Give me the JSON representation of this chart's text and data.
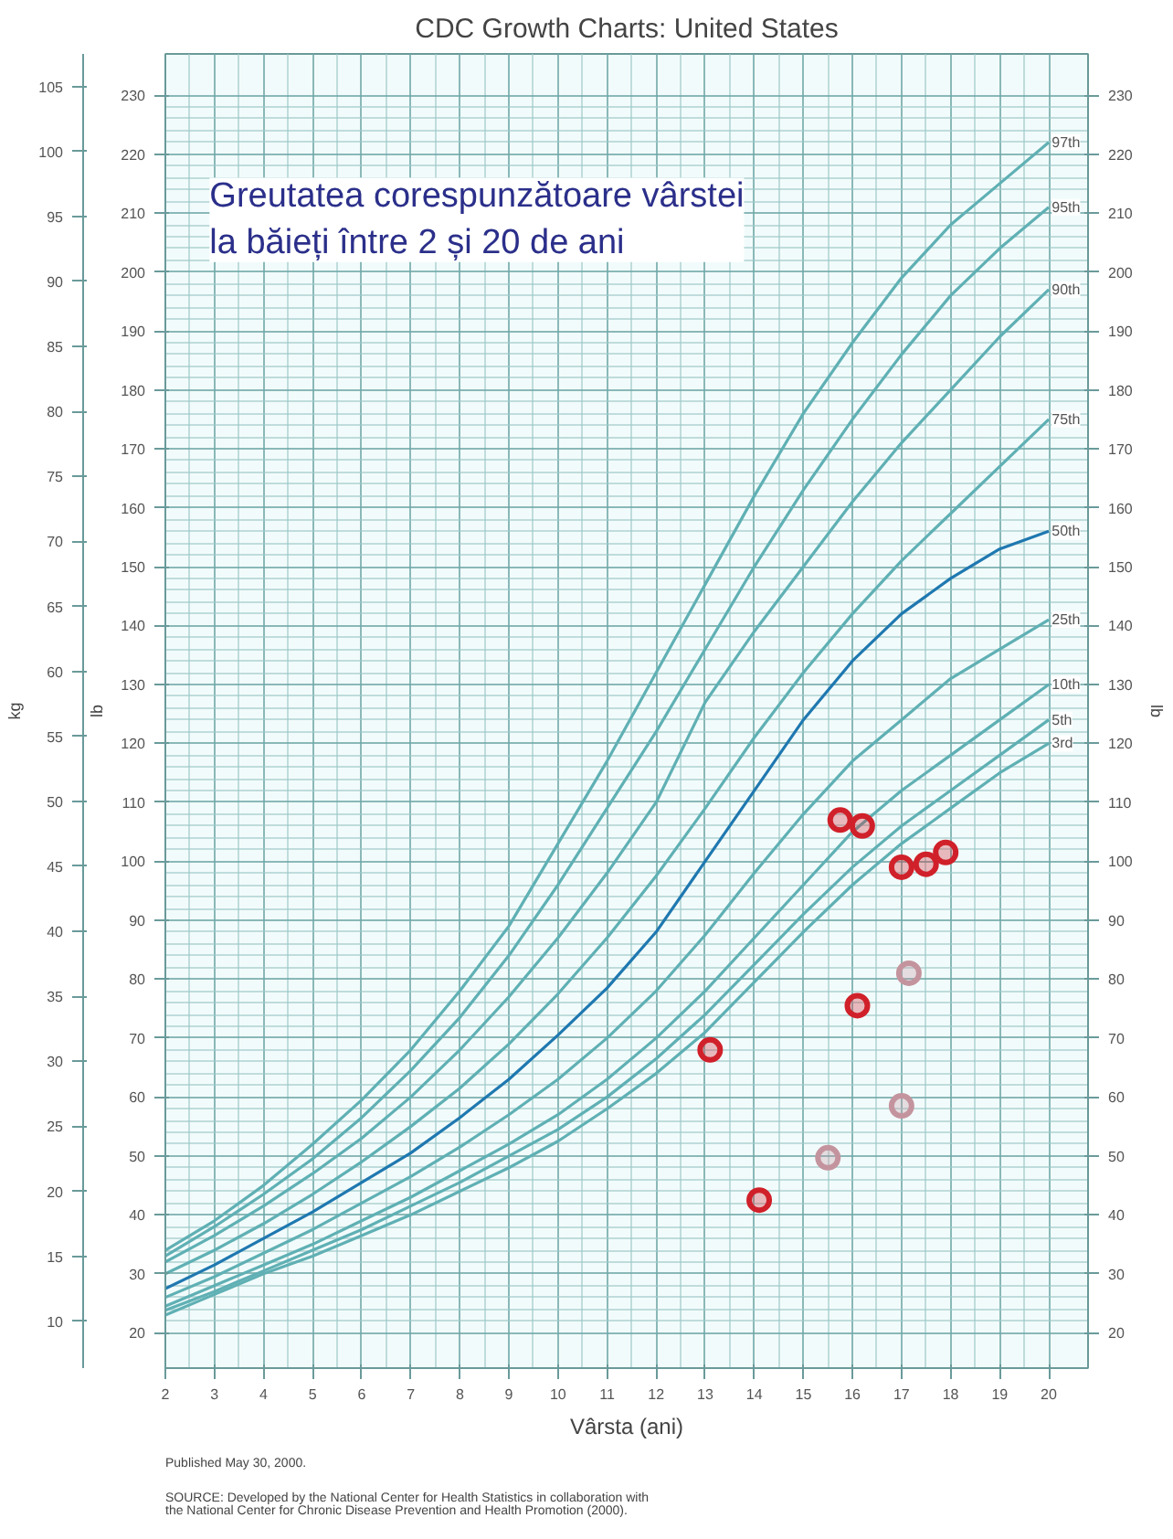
{
  "chart_data": {
    "type": "line",
    "title": "CDC Growth Charts: United States",
    "subtitle": "Greutatea corespunzătoare vârstei\nla băieți  între 2 și 20 de ani",
    "xlabel": "Vârsta (ani)",
    "ylabel": "lb",
    "y2label": "lb",
    "y3label": "kg",
    "x": [
      2,
      3,
      4,
      5,
      6,
      7,
      8,
      9,
      10,
      11,
      12,
      13,
      14,
      15,
      16,
      17,
      18,
      19,
      20
    ],
    "series": [
      {
        "name": "97th",
        "color": "#5fb0b4",
        "values": [
          34,
          39,
          45,
          52,
          59.5,
          68,
          78,
          89,
          103,
          117,
          132,
          147,
          162,
          176,
          188,
          199,
          208,
          215,
          222
        ]
      },
      {
        "name": "95th",
        "color": "#5fb0b4",
        "values": [
          33,
          38,
          43.5,
          49.5,
          56.5,
          64.5,
          73.5,
          84,
          96,
          109,
          122,
          136,
          150,
          163,
          175,
          186,
          196,
          204,
          211
        ]
      },
      {
        "name": "90th",
        "color": "#5fb0b4",
        "values": [
          32,
          36.5,
          41.5,
          47,
          53,
          60,
          68,
          77,
          87,
          98,
          110,
          127,
          139,
          150,
          161,
          171,
          180,
          189,
          197
        ]
      },
      {
        "name": "75th",
        "color": "#5fb0b4",
        "values": [
          30,
          34,
          38.5,
          43.5,
          49,
          55,
          61.5,
          69,
          77.5,
          87,
          97.5,
          109,
          121,
          132,
          142,
          151,
          159,
          167,
          175
        ]
      },
      {
        "name": "50th",
        "color": "#1f78b0",
        "values": [
          27.5,
          31.5,
          36,
          40.5,
          45.5,
          50.5,
          56.5,
          63,
          70.5,
          78.5,
          88,
          100,
          112,
          124,
          134,
          142,
          148,
          153,
          156
        ]
      },
      {
        "name": "25th",
        "color": "#5fb0b4",
        "values": [
          26,
          29.5,
          33.5,
          37.5,
          42,
          46.5,
          51.5,
          57,
          63,
          70,
          78,
          87.5,
          98,
          108,
          117,
          124,
          131,
          136,
          141
        ]
      },
      {
        "name": "10th",
        "color": "#5fb0b4",
        "values": [
          24.5,
          28,
          31.5,
          35,
          39,
          43,
          47.5,
          52,
          57,
          63,
          70,
          78,
          87,
          96,
          105,
          112,
          118,
          124,
          130
        ]
      },
      {
        "name": "5th",
        "color": "#5fb0b4",
        "values": [
          23.8,
          27,
          30.5,
          34,
          37.5,
          41.5,
          45.5,
          50,
          54.5,
          60,
          66.5,
          74,
          82.5,
          91,
          99,
          106,
          112,
          118,
          124
        ]
      },
      {
        "name": "3rd",
        "color": "#5fb0b4",
        "values": [
          23,
          26.5,
          30,
          33,
          36.5,
          40,
          44,
          48,
          52.5,
          58,
          64,
          71,
          79.5,
          88,
          96,
          103,
          109,
          115,
          120
        ]
      },
      {
        "type": "scatter",
        "marker": "circle",
        "color": "#d0202a",
        "x": [
          15.75,
          16.2,
          17.0,
          17.5,
          17.9,
          16.1,
          13.1,
          14.1
        ],
        "values": [
          107,
          106,
          99,
          99.5,
          101.5,
          75.5,
          68,
          42.5
        ]
      },
      {
        "type": "scatter",
        "marker": "circle",
        "color": "#c4949e",
        "x": [
          17.15,
          17.0,
          15.5
        ],
        "values": [
          81,
          58.5,
          49.7
        ]
      }
    ],
    "grid": true,
    "xlim": [
      2,
      20.8
    ],
    "xticks": [
      2,
      3,
      4,
      5,
      6,
      7,
      8,
      9,
      10,
      11,
      12,
      13,
      14,
      15,
      16,
      17,
      18,
      19,
      20
    ],
    "ylim": [
      14,
      237
    ],
    "yticks": [
      20,
      30,
      40,
      50,
      60,
      70,
      80,
      90,
      100,
      110,
      120,
      130,
      140,
      150,
      160,
      170,
      180,
      190,
      200,
      210,
      220,
      230
    ],
    "y2lim": [
      14,
      237
    ],
    "y2ticks": [
      20,
      30,
      40,
      50,
      60,
      70,
      80,
      90,
      100,
      110,
      120,
      130,
      140,
      150,
      160,
      170,
      180,
      190,
      200,
      210,
      220,
      230
    ],
    "y3lim": [
      6.4,
      107.5
    ],
    "y3ticks": [
      10,
      15,
      20,
      25,
      30,
      35,
      40,
      45,
      50,
      55,
      60,
      65,
      70,
      75,
      80,
      85,
      90,
      95,
      100,
      105
    ],
    "annotations": [
      "Published May 30, 2000.",
      "SOURCE: Developed by the National Center for Health Statistics in collaboration with\n         the National Center for Chronic Disease Prevention and Health Promotion (2000)."
    ]
  }
}
